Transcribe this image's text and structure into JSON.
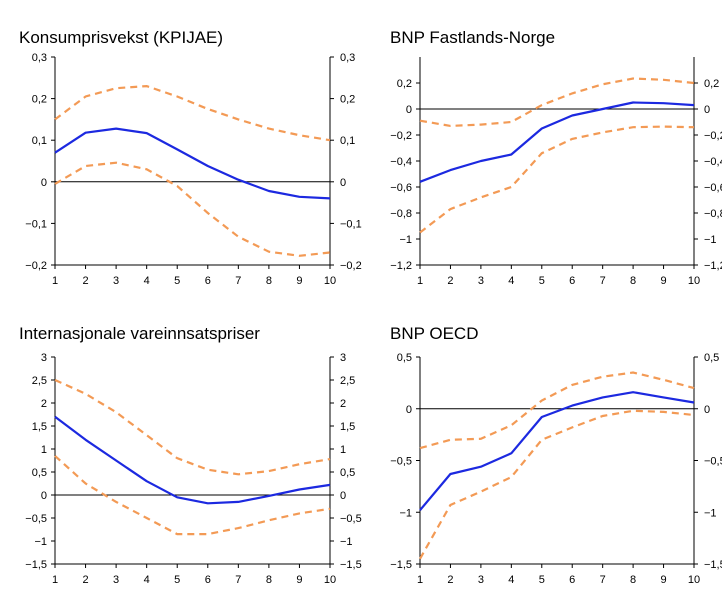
{
  "chart_data": [
    {
      "type": "line",
      "title": "Konsumprisvekst (KPIJAE)",
      "x": [
        1,
        2,
        3,
        4,
        5,
        6,
        7,
        8,
        9,
        10
      ],
      "ylim": [
        -0.2,
        0.3
      ],
      "yticks": [
        -0.2,
        -0.1,
        0,
        0.1,
        0.2,
        0.3
      ],
      "ytick_labels": [
        "−0,2",
        "−0,1",
        "0",
        "0,1",
        "0,2",
        "0,3"
      ],
      "grid": false,
      "series": [
        {
          "role": "central",
          "color": "#1c29e0",
          "values": [
            0.07,
            0.118,
            0.128,
            0.117,
            0.078,
            0.038,
            0.005,
            -0.022,
            -0.036,
            -0.04
          ]
        },
        {
          "role": "upper",
          "color": "#f39a55",
          "values": [
            0.15,
            0.205,
            0.225,
            0.23,
            0.205,
            0.175,
            0.15,
            0.128,
            0.112,
            0.1
          ]
        },
        {
          "role": "lower",
          "color": "#f39a55",
          "values": [
            -0.005,
            0.038,
            0.046,
            0.03,
            -0.01,
            -0.075,
            -0.132,
            -0.168,
            -0.178,
            -0.17
          ]
        }
      ]
    },
    {
      "type": "line",
      "title": "BNP Fastlands-Norge",
      "x": [
        1,
        2,
        3,
        4,
        5,
        6,
        7,
        8,
        9,
        10
      ],
      "ylim": [
        -1.2,
        0.4
      ],
      "yticks": [
        -1.2,
        -1,
        -0.8,
        -0.6,
        -0.4,
        -0.2,
        0,
        0.2
      ],
      "ytick_labels": [
        "−1,2",
        "−1",
        "−0,8",
        "−0,6",
        "−0,4",
        "−0,2",
        "0",
        "0,2"
      ],
      "grid": false,
      "series": [
        {
          "role": "central",
          "color": "#1c29e0",
          "values": [
            -0.56,
            -0.47,
            -0.4,
            -0.35,
            -0.15,
            -0.05,
            0.0,
            0.05,
            0.045,
            0.03
          ]
        },
        {
          "role": "upper",
          "color": "#f39a55",
          "values": [
            -0.09,
            -0.13,
            -0.12,
            -0.1,
            0.03,
            0.12,
            0.19,
            0.235,
            0.225,
            0.2
          ]
        },
        {
          "role": "lower",
          "color": "#f39a55",
          "values": [
            -0.95,
            -0.77,
            -0.68,
            -0.6,
            -0.34,
            -0.23,
            -0.18,
            -0.14,
            -0.135,
            -0.14
          ]
        }
      ]
    },
    {
      "type": "line",
      "title": "Internasjonale vareinnsatspriser",
      "x": [
        1,
        2,
        3,
        4,
        5,
        6,
        7,
        8,
        9,
        10
      ],
      "ylim": [
        -1.5,
        3
      ],
      "yticks": [
        -1.5,
        -1,
        -0.5,
        0,
        0.5,
        1,
        1.5,
        2,
        2.5,
        3
      ],
      "ytick_labels": [
        "−1,5",
        "−1",
        "−0,5",
        "0",
        "0,5",
        "1",
        "1,5",
        "2",
        "2,5",
        "3"
      ],
      "grid": false,
      "series": [
        {
          "role": "central",
          "color": "#1c29e0",
          "values": [
            1.7,
            1.2,
            0.75,
            0.3,
            -0.05,
            -0.18,
            -0.15,
            -0.02,
            0.12,
            0.22
          ]
        },
        {
          "role": "upper",
          "color": "#f39a55",
          "values": [
            2.5,
            2.2,
            1.8,
            1.3,
            0.8,
            0.55,
            0.45,
            0.52,
            0.67,
            0.78
          ]
        },
        {
          "role": "lower",
          "color": "#f39a55",
          "values": [
            0.85,
            0.25,
            -0.15,
            -0.5,
            -0.85,
            -0.85,
            -0.72,
            -0.55,
            -0.4,
            -0.3
          ]
        }
      ]
    },
    {
      "type": "line",
      "title": "BNP OECD",
      "x": [
        1,
        2,
        3,
        4,
        5,
        6,
        7,
        8,
        9,
        10
      ],
      "ylim": [
        -1.5,
        0.5
      ],
      "yticks": [
        -1.5,
        -1,
        -0.5,
        0,
        0.5
      ],
      "ytick_labels": [
        "−1,5",
        "−1",
        "−0,5",
        "0",
        "0,5"
      ],
      "grid": false,
      "series": [
        {
          "role": "central",
          "color": "#1c29e0",
          "values": [
            -0.98,
            -0.63,
            -0.56,
            -0.43,
            -0.08,
            0.03,
            0.11,
            0.16,
            0.11,
            0.06
          ]
        },
        {
          "role": "upper",
          "color": "#f39a55",
          "values": [
            -0.38,
            -0.3,
            -0.29,
            -0.16,
            0.08,
            0.23,
            0.31,
            0.35,
            0.28,
            0.2
          ]
        },
        {
          "role": "lower",
          "color": "#f39a55",
          "values": [
            -1.45,
            -0.93,
            -0.8,
            -0.66,
            -0.3,
            -0.18,
            -0.07,
            -0.02,
            -0.03,
            -0.06
          ]
        }
      ]
    }
  ],
  "x_tick_labels": [
    "1",
    "2",
    "3",
    "4",
    "5",
    "6",
    "7",
    "8",
    "9",
    "10"
  ]
}
